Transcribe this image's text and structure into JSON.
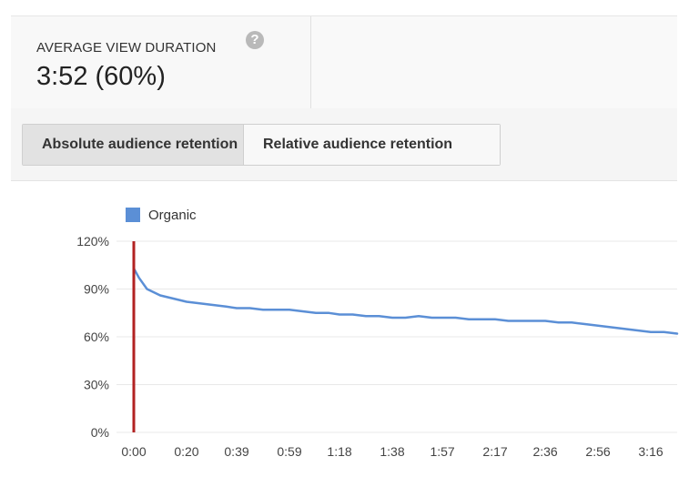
{
  "metric": {
    "label": "AVERAGE VIEW DURATION",
    "value": "3:52 (60%)",
    "help_icon": "question-icon"
  },
  "tabs": [
    {
      "label": "Absolute audience retention",
      "active": true
    },
    {
      "label": "Relative audience retention",
      "active": false
    }
  ],
  "colors": {
    "series": "#5b8fd6",
    "marker": "#b22222",
    "grid": "#e8e8e8"
  },
  "chart_data": {
    "type": "line",
    "title": "",
    "xlabel": "",
    "ylabel": "",
    "ylim": [
      0,
      120
    ],
    "yticks": [
      "0%",
      "30%",
      "60%",
      "90%",
      "120%"
    ],
    "yticks_values": [
      0,
      30,
      60,
      90,
      120
    ],
    "xticks": [
      "0:00",
      "0:20",
      "0:39",
      "0:59",
      "1:18",
      "1:38",
      "1:57",
      "2:17",
      "2:36",
      "2:56",
      "3:16"
    ],
    "xticks_seconds": [
      0,
      20,
      39,
      59,
      78,
      98,
      117,
      137,
      156,
      176,
      196
    ],
    "xlim": [
      0,
      206
    ],
    "legend": {
      "position": "top-left",
      "entries": [
        "Organic"
      ]
    },
    "marker_at_seconds": 0,
    "series": [
      {
        "name": "Organic",
        "x": [
          0,
          2,
          5,
          10,
          15,
          20,
          25,
          30,
          35,
          39,
          44,
          49,
          54,
          59,
          64,
          69,
          74,
          78,
          83,
          88,
          93,
          98,
          103,
          108,
          113,
          117,
          122,
          127,
          132,
          137,
          142,
          147,
          152,
          156,
          161,
          166,
          171,
          176,
          181,
          186,
          191,
          196,
          201,
          206
        ],
        "y": [
          103,
          97,
          90,
          86,
          84,
          82,
          81,
          80,
          79,
          78,
          78,
          77,
          77,
          77,
          76,
          75,
          75,
          74,
          74,
          73,
          73,
          72,
          72,
          73,
          72,
          72,
          72,
          71,
          71,
          71,
          70,
          70,
          70,
          70,
          69,
          69,
          68,
          67,
          66,
          65,
          64,
          63,
          63,
          62
        ]
      }
    ]
  }
}
